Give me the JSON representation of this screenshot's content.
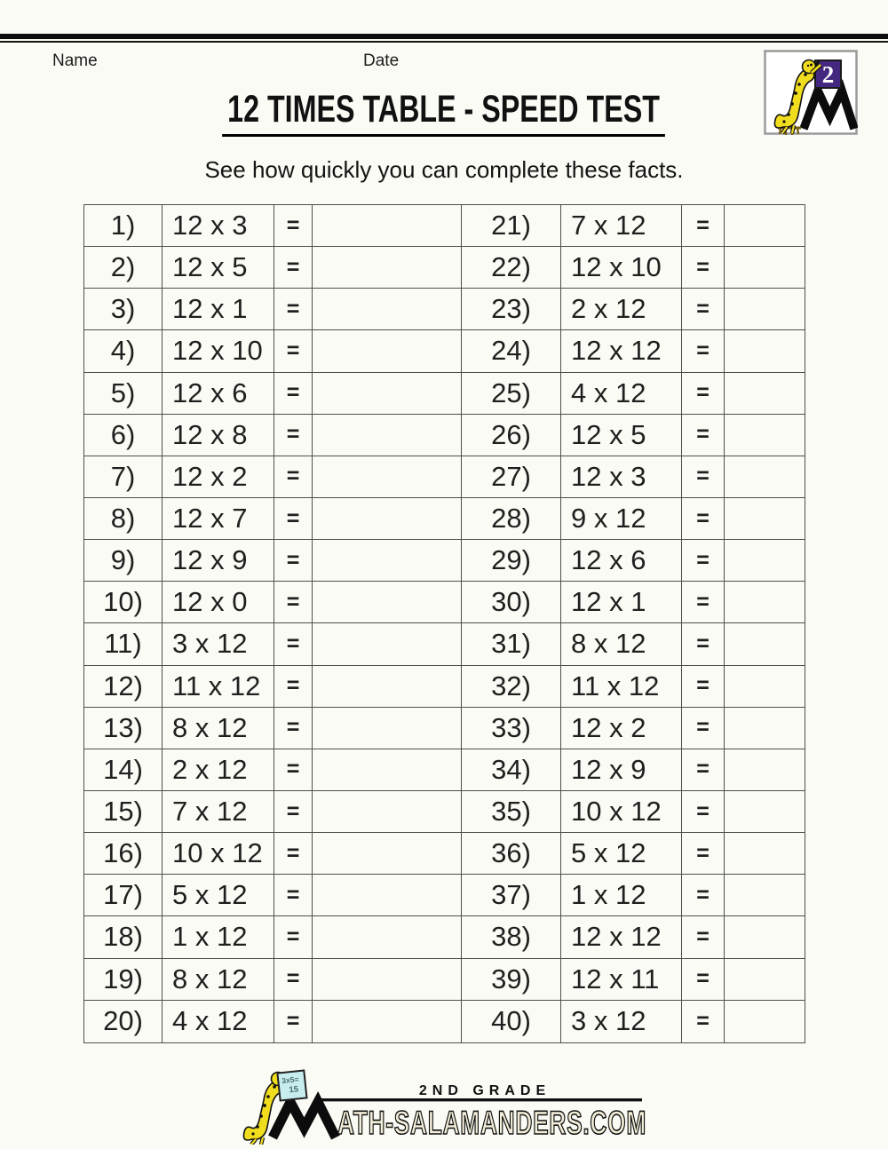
{
  "header": {
    "name_label": "Name",
    "date_label": "Date",
    "title": "12 TIMES TABLE - SPEED TEST",
    "subtitle": "See how quickly you can complete these facts."
  },
  "badge": {
    "number": "2",
    "letter": "M"
  },
  "table": {
    "eq": "=",
    "left": [
      {
        "n": "1)",
        "e": "12 x 3"
      },
      {
        "n": "2)",
        "e": "12 x 5"
      },
      {
        "n": "3)",
        "e": "12 x 1"
      },
      {
        "n": "4)",
        "e": "12 x 10"
      },
      {
        "n": "5)",
        "e": "12 x 6"
      },
      {
        "n": "6)",
        "e": "12 x 8"
      },
      {
        "n": "7)",
        "e": "12 x 2"
      },
      {
        "n": "8)",
        "e": "12 x 7"
      },
      {
        "n": "9)",
        "e": "12 x 9"
      },
      {
        "n": "10)",
        "e": "12 x 0"
      },
      {
        "n": "11)",
        "e": "3 x 12"
      },
      {
        "n": "12)",
        "e": "11 x 12"
      },
      {
        "n": "13)",
        "e": "8 x 12"
      },
      {
        "n": "14)",
        "e": "2 x 12"
      },
      {
        "n": "15)",
        "e": "7 x 12"
      },
      {
        "n": "16)",
        "e": "10 x 12"
      },
      {
        "n": "17)",
        "e": "5 x 12"
      },
      {
        "n": "18)",
        "e": "1 x 12"
      },
      {
        "n": "19)",
        "e": "8 x 12"
      },
      {
        "n": "20)",
        "e": "4 x 12"
      }
    ],
    "right": [
      {
        "n": "21)",
        "e": "7 x 12"
      },
      {
        "n": "22)",
        "e": "12 x 10"
      },
      {
        "n": "23)",
        "e": "2 x 12"
      },
      {
        "n": "24)",
        "e": "12 x 12"
      },
      {
        "n": "25)",
        "e": "4 x 12"
      },
      {
        "n": "26)",
        "e": "12 x 5"
      },
      {
        "n": "27)",
        "e": "12 x 3"
      },
      {
        "n": "28)",
        "e": "9 x 12"
      },
      {
        "n": "29)",
        "e": "12 x 6"
      },
      {
        "n": "30)",
        "e": "12 x 1"
      },
      {
        "n": "31)",
        "e": "8 x 12"
      },
      {
        "n": "32)",
        "e": "11 x 12"
      },
      {
        "n": "33)",
        "e": "12 x 2"
      },
      {
        "n": "34)",
        "e": "12 x 9"
      },
      {
        "n": "35)",
        "e": "10 x 12"
      },
      {
        "n": "36)",
        "e": "5 x 12"
      },
      {
        "n": "37)",
        "e": "1 x 12"
      },
      {
        "n": "38)",
        "e": "12 x 12"
      },
      {
        "n": "39)",
        "e": "12 x 11"
      },
      {
        "n": "40)",
        "e": "3 x 12"
      }
    ]
  },
  "footer": {
    "grade": "2ND GRADE",
    "site": "ATH-SALAMANDERS.COM",
    "letter": "M",
    "board_line1": "3x5=",
    "board_line2": "15"
  },
  "colors": {
    "rule_black": "#0d0d0d",
    "grid_line": "#4e4e4e",
    "purple_badge": "#44287f",
    "salamander_yellow": "#f0dd1e",
    "board_cyan": "#c7edee",
    "letter_cream": "#f2edd8",
    "stool_brown": "#7a5f16"
  }
}
